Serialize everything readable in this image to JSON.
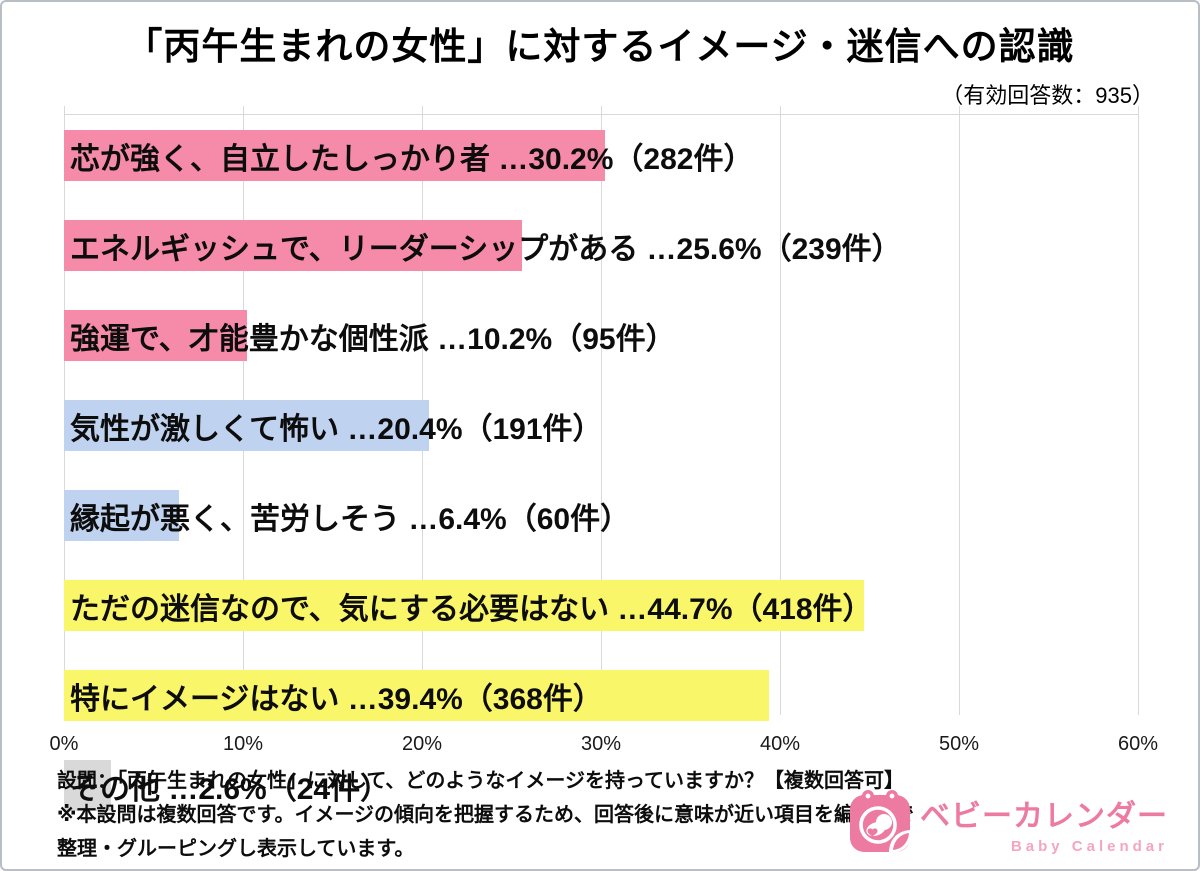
{
  "header": {
    "title": "「丙午生まれの女性」に対するイメージ・迷信への認識",
    "respondents_note": "（有効回答数：935）"
  },
  "chart_data": {
    "type": "bar",
    "orientation": "horizontal",
    "title": "「丙午生まれの女性」に対するイメージ・迷信への認識",
    "valid_responses": 935,
    "xlim": [
      0,
      60
    ],
    "x_ticks": [
      "0%",
      "10%",
      "20%",
      "30%",
      "40%",
      "50%",
      "60%"
    ],
    "grid": true,
    "categories": [
      "芯が強く、自立したしっかり者",
      "エネルギッシュで、リーダーシップがある",
      "強運で、才能豊かな個性派",
      "気性が激しくて怖い",
      "縁起が悪く、苦労しそう",
      "ただの迷信なので、気にする必要はない",
      "特にイメージはない",
      "その他"
    ],
    "values": [
      30.2,
      25.6,
      10.2,
      20.4,
      6.4,
      44.7,
      39.4,
      2.6
    ],
    "counts": [
      282,
      239,
      95,
      191,
      60,
      418,
      368,
      24
    ],
    "colors": [
      "#f58ba8",
      "#f58ba8",
      "#f58ba8",
      "#bfd2ef",
      "#bfd2ef",
      "#faf669",
      "#faf669",
      "#d9d9d9"
    ],
    "bars": [
      {
        "label": "芯が強く、自立したしっかり者",
        "pct": 30.2,
        "count": 282,
        "color": "#f58ba8",
        "display": "芯が強く、自立したしっかり者 …30.2%（282件）"
      },
      {
        "label": "エネルギッシュで、リーダーシップがある",
        "pct": 25.6,
        "count": 239,
        "color": "#f58ba8",
        "display": "エネルギッシュで、リーダーシップがある …25.6%（239件）"
      },
      {
        "label": "強運で、才能豊かな個性派",
        "pct": 10.2,
        "count": 95,
        "color": "#f58ba8",
        "display": "強運で、才能豊かな個性派 …10.2%（95件）"
      },
      {
        "label": "気性が激しくて怖い",
        "pct": 20.4,
        "count": 191,
        "color": "#bfd2ef",
        "display": "気性が激しくて怖い …20.4%（191件）"
      },
      {
        "label": "縁起が悪く、苦労しそう",
        "pct": 6.4,
        "count": 60,
        "color": "#bfd2ef",
        "display": "縁起が悪く、苦労しそう …6.4%（60件）"
      },
      {
        "label": "ただの迷信なので、気にする必要はない",
        "pct": 44.7,
        "count": 418,
        "color": "#faf669",
        "display": "ただの迷信なので、気にする必要はない …44.7%（418件）"
      },
      {
        "label": "特にイメージはない",
        "pct": 39.4,
        "count": 368,
        "color": "#faf669",
        "display": "特にイメージはない …39.4%（368件）"
      },
      {
        "label": "その他",
        "pct": 2.6,
        "count": 24,
        "color": "#d9d9d9",
        "display": "その他 …2.6%（24件）"
      }
    ]
  },
  "footer": {
    "lines": [
      "設問：「丙午生まれの女性」に対して、どのようなイメージを持っていますか？【複数回答可】",
      "※本設問は複数回答です。イメージの傾向を把握するため、回答後に意味が近い項目を編集部で",
      "整理・グルーピングし表示しています。"
    ]
  },
  "logo": {
    "brand_ja": "ベビーカレンダー",
    "brand_en": "Baby Calendar",
    "accent_color": "#ed7aa0"
  }
}
